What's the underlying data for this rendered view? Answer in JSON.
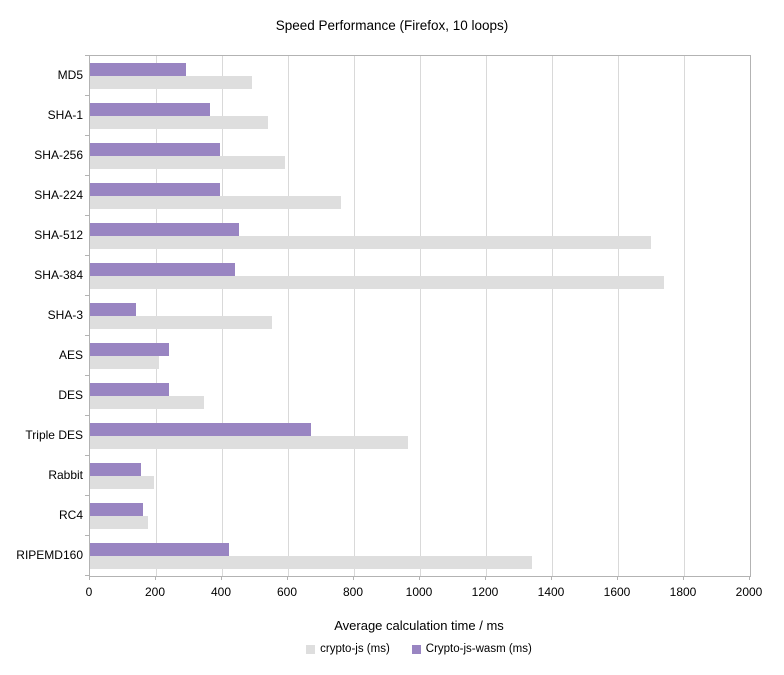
{
  "chart_data": {
    "type": "bar",
    "orientation": "horizontal",
    "title": "Speed Performance (Firefox, 10 loops)",
    "xlabel": "Average calculation time / ms",
    "xlim": [
      0,
      2000
    ],
    "xtick_step": 200,
    "xtick_labels": [
      "0",
      "200",
      "400",
      "600",
      "800",
      "1000",
      "1200",
      "1400",
      "1600",
      "1800",
      "2000"
    ],
    "grid": true,
    "legend_position": "bottom",
    "categories": [
      "MD5",
      "SHA-1",
      "SHA-256",
      "SHA-224",
      "SHA-512",
      "SHA-384",
      "SHA-3",
      "AES",
      "DES",
      "Triple DES",
      "Rabbit",
      "RC4",
      "RIPEMD160"
    ],
    "series": [
      {
        "name": "crypto-js (ms)",
        "color": "#dedede",
        "values": [
          490,
          540,
          590,
          760,
          1700,
          1740,
          550,
          210,
          345,
          965,
          195,
          175,
          1340
        ]
      },
      {
        "name": "Crypto-js-wasm (ms)",
        "color": "#9985c2",
        "values": [
          290,
          365,
          395,
          395,
          450,
          440,
          140,
          240,
          240,
          670,
          155,
          160,
          420
        ]
      }
    ]
  },
  "colors": {
    "gridline": "#d9d9d9",
    "axis_border": "#b3b3b3",
    "text": "#000000",
    "background": "#ffffff"
  }
}
